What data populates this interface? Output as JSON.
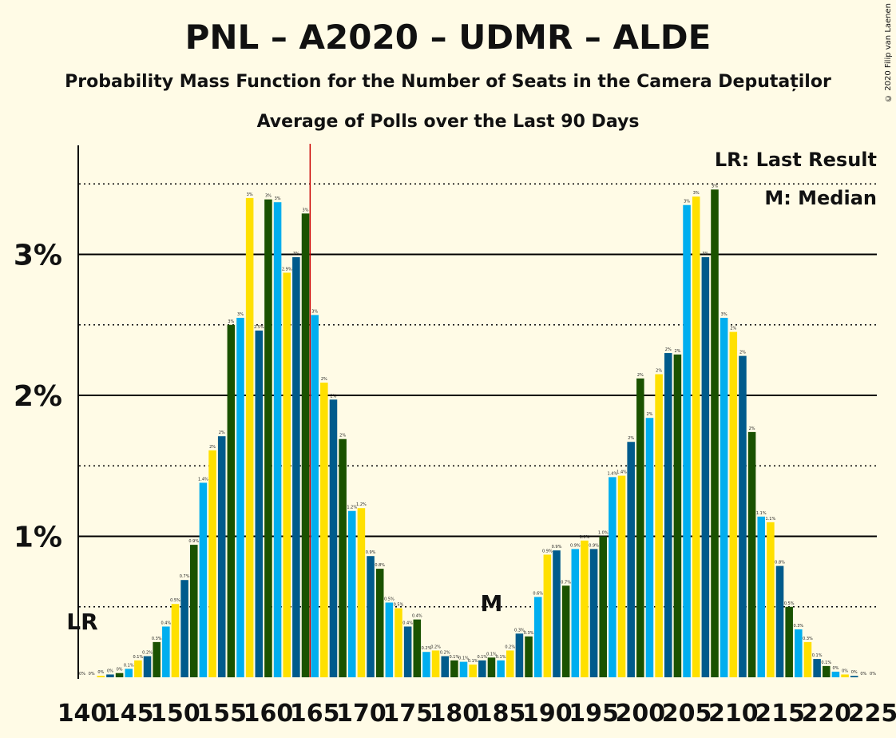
{
  "header": {
    "title": "PNL – A2020 – UDMR – ALDE",
    "subtitle": "Probability Mass Function for the Number of Seats in the Camera Deputaților",
    "subtitle2": "Average of Polls over the Last 90 Days",
    "copyright": "© 2020 Filip van Laenen"
  },
  "legend": {
    "last_result": "LR: Last Result",
    "median": "M: Median"
  },
  "markers": {
    "lr_label": "LR",
    "m_label": "M",
    "lr_seat": 140,
    "median_seat": 184,
    "red_line_seat": 165
  },
  "colors": {
    "dark_green": "#1a5200",
    "blue": "#00aeef",
    "yellow": "#ffe000",
    "dark_blue": "#005b8c",
    "red_line": "#cc0000",
    "background": "#fffbe6"
  },
  "chart_data": {
    "type": "bar",
    "xlabel": "",
    "ylabel": "",
    "ylim": [
      0,
      3.75
    ],
    "y_ticks": [
      "1%",
      "2%",
      "3%"
    ],
    "x_ticks": [
      "140",
      "145",
      "150",
      "155",
      "160",
      "165",
      "170",
      "175",
      "180",
      "185",
      "190",
      "195",
      "200",
      "205",
      "210",
      "215",
      "220",
      "225"
    ],
    "seats": [
      140,
      141,
      142,
      143,
      144,
      145,
      146,
      147,
      148,
      149,
      150,
      151,
      152,
      153,
      154,
      155,
      156,
      157,
      158,
      159,
      160,
      161,
      162,
      163,
      164,
      165,
      166,
      167,
      168,
      169,
      170,
      171,
      172,
      173,
      174,
      175,
      176,
      177,
      178,
      179,
      180,
      181,
      182,
      183,
      184,
      185,
      186,
      187,
      188,
      189,
      190,
      191,
      192,
      193,
      194,
      195,
      196,
      197,
      198,
      199,
      200,
      201,
      202,
      203,
      204,
      205,
      206,
      207,
      208,
      209,
      210,
      211,
      212,
      213,
      214,
      215,
      216,
      217,
      218,
      219,
      220,
      221,
      222,
      223,
      224,
      225
    ],
    "values": [
      0,
      0,
      0.01,
      0.02,
      0.03,
      0.06,
      0.12,
      0.15,
      0.25,
      0.36,
      0.52,
      0.69,
      0.94,
      1.38,
      1.61,
      1.71,
      2.5,
      2.55,
      3.4,
      2.46,
      3.39,
      3.37,
      2.87,
      2.98,
      3.29,
      2.57,
      2.09,
      1.97,
      1.69,
      1.18,
      1.2,
      0.86,
      0.77,
      0.53,
      0.49,
      0.36,
      0.41,
      0.18,
      0.19,
      0.15,
      0.12,
      0.11,
      0.09,
      0.12,
      0.14,
      0.12,
      0.19,
      0.31,
      0.29,
      0.57,
      0.87,
      0.9,
      0.65,
      0.91,
      0.97,
      0.91,
      1.0,
      1.42,
      1.43,
      1.67,
      2.12,
      1.84,
      2.15,
      2.3,
      2.29,
      3.35,
      3.41,
      2.98,
      3.46,
      2.55,
      2.45,
      2.28,
      1.74,
      1.14,
      1.1,
      0.79,
      0.5,
      0.34,
      0.25,
      0.13,
      0.08,
      0.04,
      0.02,
      0.01,
      0,
      0
    ],
    "bar_labels": [
      "0%",
      "0%",
      "0%",
      "0%",
      "0%",
      "0.1%",
      "0.1%",
      "0.2%",
      "0.3%",
      "0.4%",
      "0.5%",
      "0.7%",
      "0.9%",
      "1.4%",
      "2%",
      "2%",
      "3%",
      "3%",
      "3%",
      "2.5%",
      "3%",
      "3%",
      "2.9%",
      "3%",
      "3%",
      "3%",
      "2%",
      "2%",
      "2%",
      "1.2%",
      "1.2%",
      "0.9%",
      "0.8%",
      "0.5%",
      "0.5%",
      "0.4%",
      "0.4%",
      "0.2%",
      "0.2%",
      "0.2%",
      "0.1%",
      "0.1%",
      "0.1%",
      "0.1%",
      "0.1%",
      "0.1%",
      "0.2%",
      "0.3%",
      "0.3%",
      "0.6%",
      "0.9%",
      "0.9%",
      "0.7%",
      "0.9%",
      "1.0%",
      "0.9%",
      "1.0%",
      "1.4%",
      "1.4%",
      "2%",
      "2%",
      "2%",
      "2%",
      "2%",
      "2%",
      "3%",
      "3%",
      "3%",
      "3%",
      "3%",
      "2%",
      "2%",
      "2%",
      "1.1%",
      "1.1%",
      "0.8%",
      "0.5%",
      "0.3%",
      "0.3%",
      "0.1%",
      "0.1%",
      "0%",
      "0%",
      "0%",
      "0%",
      "0%"
    ]
  }
}
